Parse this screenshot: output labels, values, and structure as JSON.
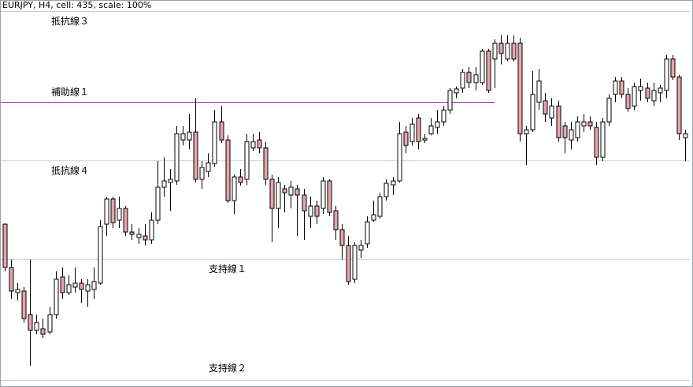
{
  "chart_data": {
    "type": "candlestick",
    "title": "EURJPY, H4, cell: 435, scale: 100%",
    "ylim": [
      0,
      492
    ],
    "up_color": "#ffffff",
    "down_color": "#e9a4ac",
    "levels": [
      {
        "name": "抵抗線３",
        "value": 478,
        "color": "#b9cfd6"
      },
      {
        "name": "補助線１",
        "value": 362,
        "color": "#a63cc0"
      },
      {
        "name": "抵抗線４",
        "value": 288,
        "color": "#b9cfd6"
      },
      {
        "name": "支持線１",
        "value": 163,
        "color": "#b9cfd6"
      },
      {
        "name": "支持線２",
        "value": 9,
        "color": "#b9cfd6"
      }
    ],
    "ohlc": [
      [
        207,
        208,
        147,
        152
      ],
      [
        152,
        162,
        112,
        122
      ],
      [
        120,
        132,
        110,
        124
      ],
      [
        122,
        127,
        82,
        87
      ],
      [
        92,
        162,
        27,
        72
      ],
      [
        72,
        92,
        67,
        82
      ],
      [
        74,
        87,
        62,
        67
      ],
      [
        70,
        102,
        67,
        92
      ],
      [
        92,
        147,
        87,
        137
      ],
      [
        140,
        152,
        112,
        120
      ],
      [
        120,
        142,
        117,
        130
      ],
      [
        127,
        152,
        120,
        132
      ],
      [
        132,
        137,
        107,
        124
      ],
      [
        122,
        137,
        102,
        130
      ],
      [
        124,
        152,
        112,
        134
      ],
      [
        132,
        212,
        130,
        204
      ],
      [
        207,
        242,
        192,
        239
      ],
      [
        239,
        242,
        202,
        209
      ],
      [
        212,
        242,
        202,
        227
      ],
      [
        227,
        230,
        192,
        197
      ],
      [
        197,
        207,
        187,
        194
      ],
      [
        190,
        202,
        182,
        194
      ],
      [
        192,
        207,
        180,
        187
      ],
      [
        187,
        222,
        182,
        212
      ],
      [
        212,
        287,
        207,
        254
      ],
      [
        254,
        292,
        242,
        262
      ],
      [
        260,
        277,
        224,
        264
      ],
      [
        262,
        332,
        257,
        322
      ],
      [
        314,
        332,
        307,
        322
      ],
      [
        314,
        347,
        302,
        324
      ],
      [
        324,
        367,
        260,
        264
      ],
      [
        264,
        287,
        252,
        279
      ],
      [
        274,
        297,
        267,
        285
      ],
      [
        284,
        352,
        280,
        337
      ],
      [
        337,
        357,
        310,
        314
      ],
      [
        314,
        320,
        234,
        237
      ],
      [
        237,
        270,
        220,
        267
      ],
      [
        267,
        277,
        256,
        260
      ],
      [
        264,
        322,
        257,
        312
      ],
      [
        304,
        322,
        300,
        312
      ],
      [
        314,
        324,
        297,
        304
      ],
      [
        304,
        312,
        257,
        264
      ],
      [
        264,
        270,
        184,
        227
      ],
      [
        227,
        267,
        202,
        260
      ],
      [
        252,
        257,
        222,
        247
      ],
      [
        244,
        262,
        227,
        254
      ],
      [
        252,
        257,
        192,
        244
      ],
      [
        244,
        252,
        187,
        224
      ],
      [
        217,
        242,
        202,
        230
      ],
      [
        230,
        237,
        207,
        217
      ],
      [
        227,
        267,
        220,
        262
      ],
      [
        262,
        264,
        217,
        222
      ],
      [
        224,
        230,
        187,
        200
      ],
      [
        200,
        207,
        162,
        180
      ],
      [
        180,
        192,
        130,
        134
      ],
      [
        137,
        184,
        132,
        180
      ],
      [
        174,
        187,
        164,
        180
      ],
      [
        182,
        217,
        177,
        210
      ],
      [
        212,
        237,
        210,
        219
      ],
      [
        217,
        247,
        214,
        242
      ],
      [
        242,
        264,
        237,
        259
      ],
      [
        257,
        267,
        244,
        262
      ],
      [
        262,
        337,
        260,
        322
      ],
      [
        324,
        332,
        297,
        307
      ],
      [
        312,
        342,
        307,
        334
      ],
      [
        342,
        347,
        302,
        312
      ],
      [
        314,
        322,
        310,
        316
      ],
      [
        322,
        342,
        320,
        332
      ],
      [
        330,
        352,
        322,
        337
      ],
      [
        337,
        357,
        332,
        352
      ],
      [
        352,
        380,
        347,
        377
      ],
      [
        374,
        382,
        367,
        379
      ],
      [
        380,
        404,
        374,
        400
      ],
      [
        400,
        407,
        380,
        387
      ],
      [
        387,
        407,
        377,
        397
      ],
      [
        387,
        430,
        384,
        427
      ],
      [
        427,
        430,
        374,
        377
      ],
      [
        417,
        442,
        380,
        437
      ],
      [
        437,
        447,
        410,
        424
      ],
      [
        417,
        447,
        414,
        437
      ],
      [
        437,
        447,
        414,
        417
      ],
      [
        437,
        444,
        312,
        322
      ],
      [
        322,
        332,
        282,
        327
      ],
      [
        327,
        402,
        324,
        372
      ],
      [
        362,
        404,
        352,
        389
      ],
      [
        364,
        374,
        337,
        347
      ],
      [
        342,
        367,
        332,
        357
      ],
      [
        357,
        364,
        312,
        317
      ],
      [
        332,
        337,
        297,
        317
      ],
      [
        314,
        337,
        302,
        327
      ],
      [
        317,
        344,
        312,
        337
      ],
      [
        332,
        347,
        324,
        337
      ],
      [
        337,
        344,
        327,
        332
      ],
      [
        330,
        337,
        282,
        292
      ],
      [
        292,
        342,
        287,
        337
      ],
      [
        337,
        372,
        332,
        367
      ],
      [
        372,
        394,
        362,
        389
      ],
      [
        389,
        394,
        367,
        372
      ],
      [
        372,
        380,
        350,
        354
      ],
      [
        357,
        387,
        352,
        382
      ],
      [
        377,
        392,
        364,
        382
      ],
      [
        380,
        387,
        362,
        367
      ],
      [
        364,
        387,
        357,
        377
      ],
      [
        374,
        384,
        362,
        380
      ],
      [
        377,
        422,
        367,
        417
      ],
      [
        417,
        422,
        390,
        394
      ],
      [
        394,
        397,
        314,
        322
      ],
      [
        317,
        327,
        287,
        322
      ]
    ]
  }
}
